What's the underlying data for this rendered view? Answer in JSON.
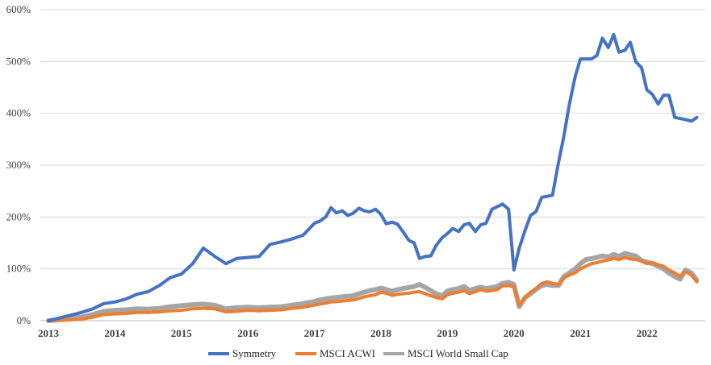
{
  "chart_data": {
    "type": "line",
    "title": "",
    "xlabel": "",
    "ylabel": "",
    "ylim": [
      0,
      600
    ],
    "xlim": [
      2013,
      2022.75
    ],
    "y_ticks": [
      "0%",
      "100%",
      "200%",
      "300%",
      "400%",
      "500%",
      "600%"
    ],
    "x_ticks": [
      "2013",
      "2014",
      "2015",
      "2016",
      "2017",
      "2018",
      "2019",
      "2020",
      "2021",
      "2022"
    ],
    "grid": "horizontal",
    "legend_position": "bottom",
    "series": [
      {
        "name": "Symmetry",
        "color": "#4472C4",
        "x": [
          2013.0,
          2013.25,
          2013.5,
          2013.67,
          2013.83,
          2014.0,
          2014.17,
          2014.33,
          2014.5,
          2014.67,
          2014.83,
          2015.0,
          2015.17,
          2015.33,
          2015.5,
          2015.67,
          2015.83,
          2016.0,
          2016.17,
          2016.33,
          2016.5,
          2016.67,
          2016.83,
          2017.0,
          2017.08,
          2017.17,
          2017.25,
          2017.33,
          2017.42,
          2017.5,
          2017.58,
          2017.67,
          2017.75,
          2017.83,
          2017.92,
          2018.0,
          2018.08,
          2018.17,
          2018.25,
          2018.33,
          2018.42,
          2018.5,
          2018.58,
          2018.67,
          2018.75,
          2018.83,
          2018.92,
          2019.0,
          2019.08,
          2019.17,
          2019.25,
          2019.33,
          2019.42,
          2019.5,
          2019.58,
          2019.67,
          2019.75,
          2019.83,
          2019.92,
          2020.0,
          2020.08,
          2020.17,
          2020.25,
          2020.33,
          2020.42,
          2020.5,
          2020.58,
          2020.67,
          2020.75,
          2020.83,
          2020.92,
          2021.0,
          2021.08,
          2021.17,
          2021.25,
          2021.33,
          2021.42,
          2021.5,
          2021.58,
          2021.67,
          2021.75,
          2021.83,
          2021.92,
          2022.0,
          2022.08,
          2022.17,
          2022.25,
          2022.33,
          2022.42,
          2022.5,
          2022.58,
          2022.67,
          2022.75
        ],
        "values": [
          0,
          8,
          16,
          23,
          33,
          36,
          42,
          51,
          56,
          68,
          83,
          90,
          110,
          140,
          124,
          110,
          120,
          122,
          124,
          147,
          152,
          158,
          165,
          188,
          192,
          200,
          218,
          208,
          212,
          203,
          207,
          217,
          212,
          210,
          215,
          205,
          187,
          190,
          186,
          172,
          155,
          150,
          120,
          124,
          125,
          145,
          160,
          168,
          178,
          172,
          185,
          188,
          172,
          185,
          188,
          215,
          220,
          225,
          215,
          98,
          140,
          175,
          203,
          210,
          238,
          240,
          242,
          305,
          355,
          415,
          470,
          505,
          505,
          505,
          512,
          545,
          527,
          552,
          518,
          522,
          537,
          500,
          488,
          445,
          437,
          418,
          435,
          435,
          392,
          390,
          388,
          385,
          392
        ],
        "values_note": ""
      },
      {
        "name": "MSCI ACWI",
        "color": "#ED7D31",
        "x": [
          2013.0,
          2013.25,
          2013.5,
          2013.67,
          2013.83,
          2014.0,
          2014.17,
          2014.33,
          2014.5,
          2014.67,
          2014.83,
          2015.0,
          2015.17,
          2015.33,
          2015.5,
          2015.67,
          2015.83,
          2016.0,
          2016.17,
          2016.33,
          2016.5,
          2016.67,
          2016.83,
          2017.0,
          2017.08,
          2017.17,
          2017.25,
          2017.33,
          2017.42,
          2017.5,
          2017.58,
          2017.67,
          2017.75,
          2017.83,
          2017.92,
          2018.0,
          2018.08,
          2018.17,
          2018.25,
          2018.33,
          2018.42,
          2018.5,
          2018.58,
          2018.67,
          2018.75,
          2018.83,
          2018.92,
          2019.0,
          2019.08,
          2019.17,
          2019.25,
          2019.33,
          2019.42,
          2019.5,
          2019.58,
          2019.67,
          2019.75,
          2019.83,
          2019.92,
          2020.0,
          2020.08,
          2020.17,
          2020.25,
          2020.33,
          2020.42,
          2020.5,
          2020.58,
          2020.67,
          2020.75,
          2020.83,
          2020.92,
          2021.0,
          2021.08,
          2021.17,
          2021.25,
          2021.33,
          2021.42,
          2021.5,
          2021.58,
          2021.67,
          2021.75,
          2021.83,
          2021.92,
          2022.0,
          2022.08,
          2022.17,
          2022.25,
          2022.33,
          2022.42,
          2022.5,
          2022.58,
          2022.67,
          2022.75
        ],
        "values": [
          0,
          1,
          3,
          7,
          12,
          13,
          14,
          16,
          16,
          17,
          19,
          20,
          23,
          24,
          23,
          17,
          18,
          20,
          19,
          20,
          21,
          24,
          26,
          30,
          32,
          34,
          36,
          37,
          38,
          39,
          40,
          43,
          46,
          48,
          50,
          55,
          53,
          49,
          51,
          52,
          53,
          55,
          56,
          52,
          48,
          45,
          42,
          50,
          53,
          55,
          58,
          52,
          56,
          60,
          57,
          58,
          60,
          67,
          68,
          65,
          30,
          45,
          55,
          62,
          72,
          75,
          72,
          70,
          82,
          88,
          92,
          100,
          105,
          110,
          112,
          115,
          117,
          120,
          118,
          122,
          119,
          118,
          115,
          110,
          112,
          108,
          105,
          98,
          92,
          85,
          95,
          88,
          75
        ]
      },
      {
        "name": "MSCI World Small Cap",
        "color": "#A5A5A5",
        "x": [
          2013.0,
          2013.25,
          2013.5,
          2013.67,
          2013.83,
          2014.0,
          2014.17,
          2014.33,
          2014.5,
          2014.67,
          2014.83,
          2015.0,
          2015.17,
          2015.33,
          2015.5,
          2015.67,
          2015.83,
          2016.0,
          2016.17,
          2016.33,
          2016.5,
          2016.67,
          2016.83,
          2017.0,
          2017.08,
          2017.17,
          2017.25,
          2017.33,
          2017.42,
          2017.5,
          2017.58,
          2017.67,
          2017.75,
          2017.83,
          2017.92,
          2018.0,
          2018.08,
          2018.17,
          2018.25,
          2018.33,
          2018.42,
          2018.5,
          2018.58,
          2018.67,
          2018.75,
          2018.83,
          2018.92,
          2019.0,
          2019.08,
          2019.17,
          2019.25,
          2019.33,
          2019.42,
          2019.5,
          2019.58,
          2019.67,
          2019.75,
          2019.83,
          2019.92,
          2020.0,
          2020.08,
          2020.17,
          2020.25,
          2020.33,
          2020.42,
          2020.5,
          2020.58,
          2020.67,
          2020.75,
          2020.83,
          2020.92,
          2021.0,
          2021.08,
          2021.17,
          2021.25,
          2021.33,
          2021.42,
          2021.5,
          2021.58,
          2021.67,
          2021.75,
          2021.83,
          2021.92,
          2022.0,
          2022.08,
          2022.17,
          2022.25,
          2022.33,
          2022.42,
          2022.5,
          2022.58,
          2022.67,
          2022.75
        ],
        "values": [
          0,
          3,
          7,
          12,
          18,
          20,
          21,
          23,
          22,
          24,
          27,
          29,
          31,
          32,
          30,
          23,
          25,
          26,
          25,
          26,
          27,
          30,
          33,
          37,
          40,
          42,
          44,
          45,
          46,
          47,
          48,
          52,
          55,
          58,
          60,
          63,
          60,
          57,
          60,
          62,
          64,
          66,
          70,
          64,
          58,
          52,
          48,
          57,
          60,
          62,
          66,
          58,
          62,
          65,
          62,
          64,
          66,
          72,
          74,
          70,
          27,
          45,
          52,
          60,
          68,
          70,
          68,
          68,
          85,
          92,
          100,
          110,
          118,
          120,
          122,
          125,
          123,
          128,
          124,
          130,
          127,
          125,
          116,
          113,
          110,
          105,
          100,
          92,
          85,
          80,
          98,
          92,
          78
        ]
      }
    ]
  }
}
